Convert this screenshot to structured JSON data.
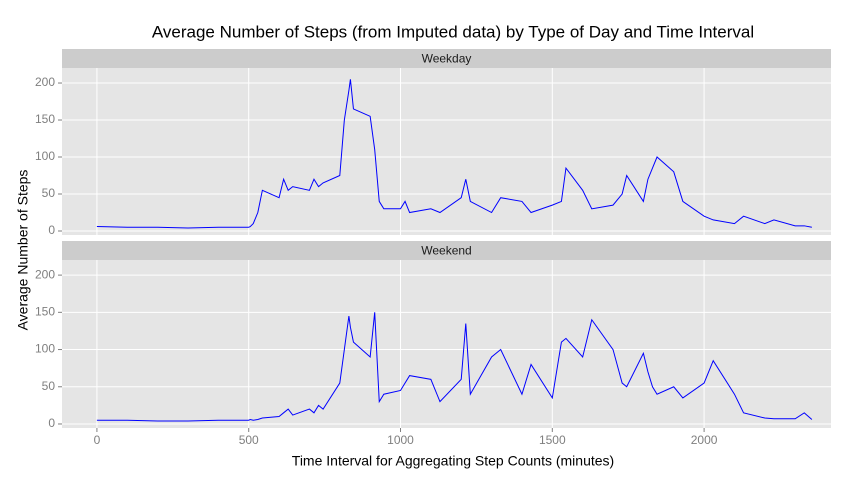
{
  "chart_data": {
    "type": "line",
    "title": "Average Number of Steps (from Imputed data) by Type of Day and Time Interval",
    "xlabel": "Time Interval for Aggregating Step Counts (minutes)",
    "ylabel": "Average Number of Steps",
    "facet": true,
    "grid": true,
    "x": [
      0,
      100,
      200,
      300,
      400,
      500,
      505,
      515,
      530,
      545,
      600,
      615,
      630,
      645,
      700,
      715,
      730,
      745,
      800,
      815,
      830,
      835,
      845,
      900,
      915,
      930,
      945,
      1000,
      1015,
      1030,
      1100,
      1130,
      1200,
      1215,
      1230,
      1300,
      1330,
      1400,
      1430,
      1500,
      1530,
      1545,
      1600,
      1630,
      1700,
      1730,
      1745,
      1800,
      1815,
      1830,
      1845,
      1900,
      1930,
      2000,
      2030,
      2100,
      2130,
      2200,
      2230,
      2300,
      2330,
      2355
    ],
    "series": [
      {
        "name": "Weekday",
        "color": "#0000ff",
        "values": [
          6,
          5,
          5,
          4,
          5,
          5,
          6,
          10,
          25,
          55,
          45,
          70,
          55,
          60,
          55,
          70,
          60,
          65,
          75,
          150,
          190,
          205,
          165,
          155,
          110,
          40,
          30,
          30,
          40,
          25,
          30,
          25,
          45,
          70,
          40,
          25,
          45,
          40,
          25,
          35,
          40,
          85,
          55,
          30,
          35,
          50,
          75,
          40,
          70,
          85,
          100,
          80,
          40,
          20,
          15,
          10,
          20,
          10,
          15,
          7,
          7,
          5
        ]
      },
      {
        "name": "Weekend",
        "color": "#0000ff",
        "values": [
          5,
          5,
          4,
          4,
          5,
          5,
          6,
          5,
          6,
          8,
          10,
          15,
          20,
          12,
          20,
          15,
          25,
          20,
          55,
          100,
          145,
          130,
          110,
          90,
          150,
          30,
          40,
          45,
          55,
          65,
          60,
          30,
          60,
          135,
          40,
          90,
          100,
          40,
          80,
          35,
          110,
          115,
          90,
          140,
          100,
          55,
          50,
          95,
          70,
          50,
          40,
          50,
          35,
          55,
          85,
          40,
          15,
          8,
          7,
          7,
          15,
          6
        ]
      }
    ],
    "xlim": [
      -115,
      2418
    ],
    "xticks": [
      0,
      500,
      1000,
      1500,
      2000
    ],
    "ylim": [
      -5.4,
      220.3
    ],
    "yticks": [
      0,
      50,
      100,
      150,
      200
    ]
  }
}
